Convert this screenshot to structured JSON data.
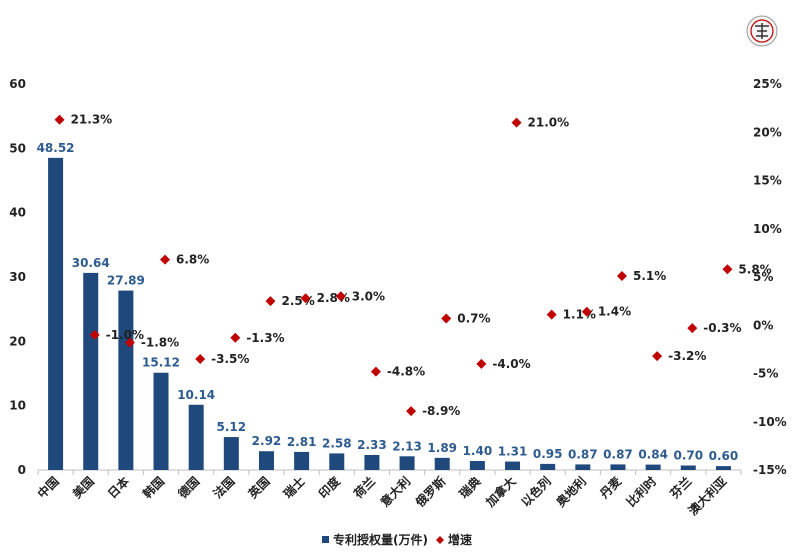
{
  "chart_data": {
    "type": "bar",
    "categories": [
      "中国",
      "美国",
      "日本",
      "韩国",
      "德国",
      "法国",
      "英国",
      "瑞士",
      "印度",
      "荷兰",
      "意大利",
      "俄罗斯",
      "瑞典",
      "加拿大",
      "以色列",
      "奥地利",
      "丹麦",
      "比利时",
      "芬兰",
      "澳大利亚"
    ],
    "series": [
      {
        "name": "专利授权量(万件)",
        "type": "bar",
        "axis": "left",
        "values": [
          48.52,
          30.64,
          27.89,
          15.12,
          10.14,
          5.12,
          2.92,
          2.81,
          2.58,
          2.33,
          2.13,
          1.89,
          1.4,
          1.31,
          0.95,
          0.87,
          0.87,
          0.84,
          0.7,
          0.6
        ],
        "labels": [
          "48.52",
          "30.64",
          "27.89",
          "15.12",
          "10.14",
          "5.12",
          "2.92",
          "2.81",
          "2.58",
          "2.33",
          "2.13",
          "1.89",
          "1.40",
          "1.31",
          "0.95",
          "0.87",
          "0.87",
          "0.84",
          "0.70",
          "0.60"
        ]
      },
      {
        "name": "增速",
        "type": "scatter",
        "axis": "right",
        "values": [
          21.3,
          -1.0,
          -1.8,
          6.8,
          -3.5,
          -1.3,
          2.5,
          2.8,
          3.0,
          -4.8,
          -8.9,
          0.7,
          -4.0,
          21.0,
          1.1,
          1.4,
          5.1,
          -3.2,
          -0.3,
          5.8
        ],
        "labels": [
          "21.3%",
          "-1.0%",
          "-1.8%",
          "6.8%",
          "-3.5%",
          "-1.3%",
          "2.5%",
          "2.8%",
          "3.0%",
          "-4.8%",
          "-8.9%",
          "0.7%",
          "-4.0%",
          "21.0%",
          "1.1%",
          "1.4%",
          "5.1%",
          "-3.2%",
          "-0.3%",
          "5.8%"
        ]
      }
    ],
    "y_left": {
      "ylim": [
        0,
        60
      ],
      "ticks": [
        0,
        10,
        20,
        30,
        40,
        50,
        60
      ],
      "tick_labels": [
        "0",
        "10",
        "20",
        "30",
        "40",
        "50",
        "60"
      ]
    },
    "y_right": {
      "ylim": [
        -15,
        25
      ],
      "ticks": [
        -15,
        -10,
        -5,
        0,
        5,
        10,
        15,
        20,
        25
      ],
      "tick_labels": [
        "-15%",
        "-10%",
        "-5%",
        "0%",
        "5%",
        "10%",
        "15%",
        "20%",
        "25%"
      ]
    },
    "legend_position": "bottom-center",
    "grid": false,
    "colors": {
      "bar": "#1f497d",
      "marker": "#c00000",
      "bar_label": "#2e5b8f"
    }
  }
}
